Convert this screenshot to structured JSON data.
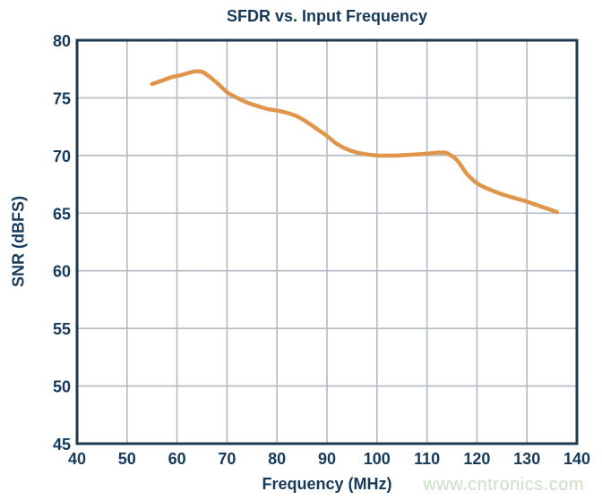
{
  "figure": {
    "watermark": "www.cntronics.com"
  },
  "chart_data": {
    "type": "line",
    "title": "SFDR vs. Input Frequency",
    "xlabel": "Frequency (MHz)",
    "ylabel": "SNR (dBFS)",
    "xlim": [
      40,
      140
    ],
    "ylim": [
      45,
      80
    ],
    "xticks": [
      40,
      50,
      60,
      70,
      80,
      90,
      100,
      110,
      120,
      130,
      140
    ],
    "yticks": [
      45,
      50,
      55,
      60,
      65,
      70,
      75,
      80
    ],
    "grid": true,
    "legend": false,
    "colors": {
      "line": "#E0964A",
      "grid": "#B3BAC1",
      "border": "#1C3A50",
      "text": "#17395A",
      "watermark": "#C9E0C5",
      "background": "#FFFFFF"
    },
    "series": [
      {
        "name": "SFDR",
        "color": "#E0964A",
        "points": [
          [
            55,
            76.2
          ],
          [
            57,
            76.5
          ],
          [
            59,
            76.8
          ],
          [
            61,
            77.0
          ],
          [
            63,
            77.25
          ],
          [
            64,
            77.3
          ],
          [
            65,
            77.25
          ],
          [
            66,
            77.0
          ],
          [
            68,
            76.3
          ],
          [
            70,
            75.5
          ],
          [
            72,
            75.0
          ],
          [
            74,
            74.6
          ],
          [
            76,
            74.3
          ],
          [
            78,
            74.05
          ],
          [
            80,
            73.9
          ],
          [
            82,
            73.7
          ],
          [
            84,
            73.4
          ],
          [
            86,
            72.9
          ],
          [
            88,
            72.3
          ],
          [
            90,
            71.7
          ],
          [
            92,
            71.0
          ],
          [
            94,
            70.55
          ],
          [
            96,
            70.25
          ],
          [
            98,
            70.1
          ],
          [
            100,
            70.0
          ],
          [
            102,
            70.0
          ],
          [
            104,
            70.0
          ],
          [
            106,
            70.05
          ],
          [
            108,
            70.1
          ],
          [
            110,
            70.15
          ],
          [
            112,
            70.25
          ],
          [
            113,
            70.25
          ],
          [
            114,
            70.2
          ],
          [
            116,
            69.6
          ],
          [
            118,
            68.4
          ],
          [
            120,
            67.6
          ],
          [
            122,
            67.15
          ],
          [
            124,
            66.8
          ],
          [
            126,
            66.5
          ],
          [
            128,
            66.25
          ],
          [
            130,
            66.0
          ],
          [
            132,
            65.7
          ],
          [
            134,
            65.4
          ],
          [
            136,
            65.1
          ]
        ]
      }
    ]
  }
}
